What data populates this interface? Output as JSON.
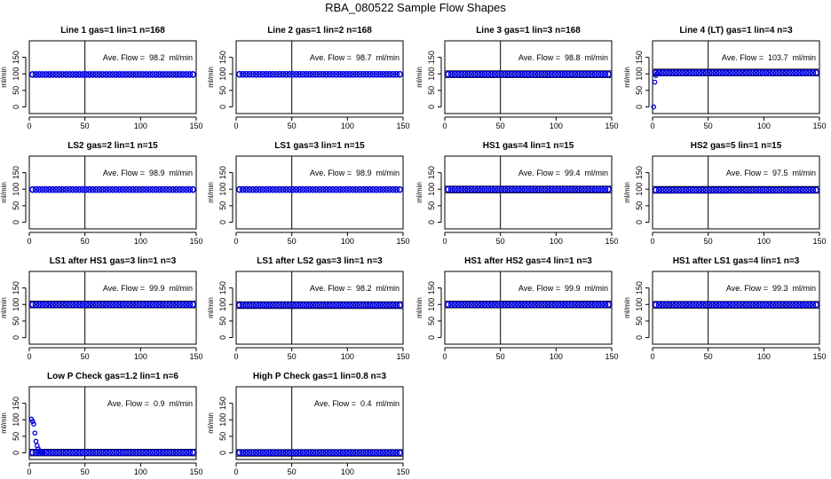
{
  "title": "RBA_080522  Sample Flow Shapes",
  "colors": {
    "points": "#0000dd",
    "axis": "#000000"
  },
  "chart_data": [
    {
      "type": "scatter",
      "title": "Line 1 gas=1 lin=1 n=168",
      "annotation": "Ave. Flow =  98.2  ml/min",
      "ylabel": "ml/min",
      "xlim": [
        0,
        150
      ],
      "ylim": [
        -20,
        200
      ],
      "xticks": [
        0,
        50,
        100,
        150
      ],
      "yticks": [
        0,
        50,
        100,
        150
      ],
      "vline_x": 50,
      "hlines": [],
      "level": 98.2,
      "points": []
    },
    {
      "type": "scatter",
      "title": "Line 2 gas=1 lin=2 n=168",
      "annotation": "Ave. Flow =  98.7  ml/min",
      "ylabel": "ml/min",
      "xlim": [
        0,
        150
      ],
      "ylim": [
        -20,
        200
      ],
      "xticks": [
        0,
        50,
        100,
        150
      ],
      "yticks": [
        0,
        50,
        100,
        150
      ],
      "vline_x": 50,
      "hlines": [],
      "level": 98.7,
      "points": []
    },
    {
      "type": "scatter",
      "title": "Line 3 gas=1 lin=3 n=168",
      "annotation": "Ave. Flow =  98.8  ml/min",
      "ylabel": "ml/min",
      "xlim": [
        0,
        150
      ],
      "ylim": [
        -20,
        200
      ],
      "xticks": [
        0,
        50,
        100,
        150
      ],
      "yticks": [
        0,
        50,
        100,
        150
      ],
      "vline_x": 50,
      "hlines": [
        89,
        109
      ],
      "level": 98.8,
      "points": []
    },
    {
      "type": "scatter",
      "title": "Line 4 (LT) gas=1 lin=4 n=3",
      "annotation": "Ave. Flow =  103.7  ml/min",
      "ylabel": "ml/min",
      "xlim": [
        0,
        150
      ],
      "ylim": [
        -20,
        200
      ],
      "xticks": [
        0,
        50,
        100,
        150
      ],
      "yticks": [
        0,
        50,
        100,
        150
      ],
      "vline_x": 50,
      "hlines": [
        94,
        114
      ],
      "level": 103.7,
      "points": [
        [
          1,
          0
        ],
        [
          2,
          75
        ],
        [
          3,
          95
        ],
        [
          4,
          101
        ]
      ]
    },
    {
      "type": "scatter",
      "title": "LS2 gas=2 lin=1 n=15",
      "annotation": "Ave. Flow =  98.9  ml/min",
      "ylabel": "ml/min",
      "xlim": [
        0,
        150
      ],
      "ylim": [
        -20,
        200
      ],
      "xticks": [
        0,
        50,
        100,
        150
      ],
      "yticks": [
        0,
        50,
        100,
        150
      ],
      "vline_x": 50,
      "hlines": [],
      "level": 98.9,
      "points": []
    },
    {
      "type": "scatter",
      "title": "LS1 gas=3 lin=1 n=15",
      "annotation": "Ave. Flow =  98.9  ml/min",
      "ylabel": "ml/min",
      "xlim": [
        0,
        150
      ],
      "ylim": [
        -20,
        200
      ],
      "xticks": [
        0,
        50,
        100,
        150
      ],
      "yticks": [
        0,
        50,
        100,
        150
      ],
      "vline_x": 50,
      "hlines": [],
      "level": 98.9,
      "points": []
    },
    {
      "type": "scatter",
      "title": "HS1 gas=4 lin=1 n=15",
      "annotation": "Ave. Flow =  99.4  ml/min",
      "ylabel": "ml/min",
      "xlim": [
        0,
        150
      ],
      "ylim": [
        -20,
        200
      ],
      "xticks": [
        0,
        50,
        100,
        150
      ],
      "yticks": [
        0,
        50,
        100,
        150
      ],
      "vline_x": 50,
      "hlines": [
        89,
        109
      ],
      "level": 99.4,
      "points": []
    },
    {
      "type": "scatter",
      "title": "HS2 gas=5 lin=1 n=15",
      "annotation": "Ave. Flow =  97.5  ml/min",
      "ylabel": "ml/min",
      "xlim": [
        0,
        150
      ],
      "ylim": [
        -20,
        200
      ],
      "xticks": [
        0,
        50,
        100,
        150
      ],
      "yticks": [
        0,
        50,
        100,
        150
      ],
      "vline_x": 50,
      "hlines": [
        88,
        108
      ],
      "level": 97.5,
      "points": []
    },
    {
      "type": "scatter",
      "title": "LS1 after HS1 gas=3 lin=1 n=3",
      "annotation": "Ave. Flow =  99.9  ml/min",
      "ylabel": "ml/min",
      "xlim": [
        0,
        150
      ],
      "ylim": [
        -20,
        200
      ],
      "xticks": [
        0,
        50,
        100,
        150
      ],
      "yticks": [
        0,
        50,
        100,
        150
      ],
      "vline_x": 50,
      "hlines": [
        90,
        110
      ],
      "level": 99.9,
      "points": []
    },
    {
      "type": "scatter",
      "title": "LS1 after LS2 gas=3 lin=1 n=3",
      "annotation": "Ave. Flow =  98.2  ml/min",
      "ylabel": "ml/min",
      "xlim": [
        0,
        150
      ],
      "ylim": [
        -20,
        200
      ],
      "xticks": [
        0,
        50,
        100,
        150
      ],
      "yticks": [
        0,
        50,
        100,
        150
      ],
      "vline_x": 50,
      "hlines": [
        88,
        108
      ],
      "level": 98.2,
      "points": []
    },
    {
      "type": "scatter",
      "title": "HS1 after HS2 gas=4 lin=1 n=3",
      "annotation": "Ave. Flow =  99.9  ml/min",
      "ylabel": "ml/min",
      "xlim": [
        0,
        150
      ],
      "ylim": [
        -20,
        200
      ],
      "xticks": [
        0,
        50,
        100,
        150
      ],
      "yticks": [
        0,
        50,
        100,
        150
      ],
      "vline_x": 50,
      "hlines": [
        90,
        110
      ],
      "level": 99.9,
      "points": []
    },
    {
      "type": "scatter",
      "title": "HS1 after LS1 gas=4 lin=1 n=3",
      "annotation": "Ave. Flow =  99.3  ml/min",
      "ylabel": "ml/min",
      "xlim": [
        0,
        150
      ],
      "ylim": [
        -20,
        200
      ],
      "xticks": [
        0,
        50,
        100,
        150
      ],
      "yticks": [
        0,
        50,
        100,
        150
      ],
      "vline_x": 50,
      "hlines": [
        89,
        109
      ],
      "level": 99.3,
      "points": []
    },
    {
      "type": "scatter",
      "title": "Low P Check gas=1.2 lin=1 n=6",
      "annotation": "Ave. Flow =  0.9  ml/min",
      "ylabel": "ml/min",
      "xlim": [
        0,
        150
      ],
      "ylim": [
        -20,
        200
      ],
      "xticks": [
        0,
        50,
        100,
        150
      ],
      "yticks": [
        0,
        50,
        100,
        150
      ],
      "vline_x": 50,
      "hlines": [
        -9,
        11
      ],
      "level": 0.9,
      "points": [
        [
          2,
          102
        ],
        [
          3,
          95
        ],
        [
          4,
          87
        ],
        [
          5,
          60
        ],
        [
          6,
          35
        ],
        [
          7,
          22
        ],
        [
          8,
          12
        ],
        [
          9,
          6
        ],
        [
          10,
          3
        ],
        [
          11,
          2
        ],
        [
          12,
          1
        ]
      ]
    },
    {
      "type": "scatter",
      "title": "High P Check gas=1 lin=0.8 n=3",
      "annotation": "Ave. Flow =  0.4  ml/min",
      "ylabel": "ml/min",
      "xlim": [
        0,
        150
      ],
      "ylim": [
        -20,
        200
      ],
      "xticks": [
        0,
        50,
        100,
        150
      ],
      "yticks": [
        0,
        50,
        100,
        150
      ],
      "vline_x": 50,
      "hlines": [
        -10,
        10
      ],
      "level": 0.4,
      "points": []
    }
  ]
}
